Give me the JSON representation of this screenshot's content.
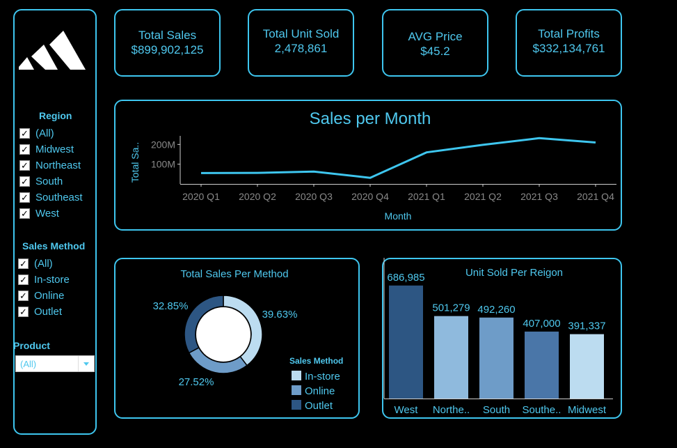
{
  "sidebar": {
    "region_title": "Region",
    "regions": [
      "(All)",
      "Midwest",
      "Northeast",
      "South",
      "Southeast",
      "West"
    ],
    "method_title": "Sales Method",
    "methods": [
      "(All)",
      "In-store",
      "Online",
      "Outlet"
    ],
    "product_title": "Product",
    "product_value": "(All)",
    "logo_icon": "adidas-logo-icon"
  },
  "kpis": [
    {
      "title": "Total Sales",
      "value": "$899,902,125"
    },
    {
      "title": "Total Unit Sold",
      "value": "2,478,861"
    },
    {
      "title": "AVG Price",
      "value": "$45.2"
    },
    {
      "title": "Total Profits",
      "value": "$332,134,761"
    }
  ],
  "colors": {
    "accent": "#3ec6ef",
    "line": "#3ec6ef",
    "in_store": "#bcdcf0",
    "online": "#6e9cc8",
    "outlet": "#2d5683"
  },
  "chart_data": [
    {
      "type": "line",
      "title": "Sales per Month",
      "xlabel": "Month",
      "ylabel": "Total Sa..",
      "categories": [
        "2020 Q1",
        "2020 Q2",
        "2020 Q3",
        "2020 Q4",
        "2021 Q1",
        "2021 Q2",
        "2021 Q3",
        "2021 Q4"
      ],
      "values": [
        55000000,
        56000000,
        63000000,
        31000000,
        160000000,
        198000000,
        232000000,
        210000000
      ],
      "y_ticks": [
        {
          "value": 100000000,
          "label": "100M"
        },
        {
          "value": 200000000,
          "label": "200M"
        }
      ],
      "ylim": [
        0,
        240000000
      ],
      "grid": false
    },
    {
      "type": "pie",
      "title": "Total Sales Per Method",
      "legend_title": "Sales Method",
      "legend_position": "bottom-right",
      "slices": [
        {
          "name": "In-store",
          "value": 39.63,
          "label": "39.63%"
        },
        {
          "name": "Online",
          "value": 27.52,
          "label": "27.52%"
        },
        {
          "name": "Outlet",
          "value": 32.85,
          "label": "32.85%"
        }
      ]
    },
    {
      "type": "bar",
      "title": "Unit Sold Per Reigon",
      "categories": [
        "West",
        "Northe..",
        "South",
        "Southe..",
        "Midwest"
      ],
      "values": [
        686985,
        501279,
        492260,
        407000,
        391337
      ],
      "value_labels": [
        "686,985",
        "501,279",
        "492,260",
        "407,000",
        "391,337"
      ],
      "bar_colors": [
        "#2d5683",
        "#8fbadd",
        "#6e9cc8",
        "#4a76a8",
        "#bcdcf0"
      ],
      "ylim": [
        0,
        720000
      ]
    }
  ]
}
